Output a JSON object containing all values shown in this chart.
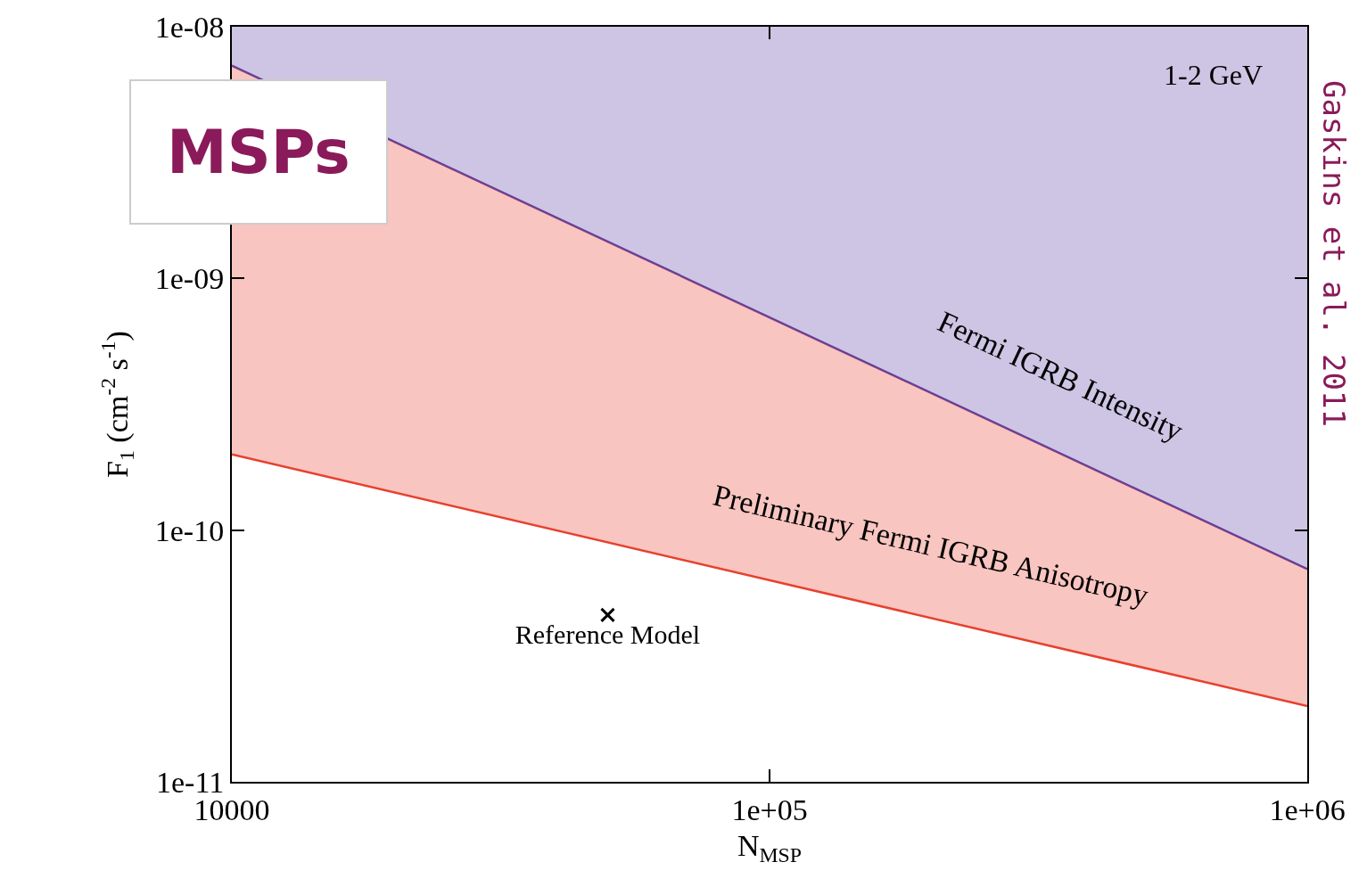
{
  "chart_data": {
    "type": "line",
    "title": "MSPs",
    "xlabel": "N$_{MSP}$",
    "ylabel": "F$_{1}$ (cm$^{-2}$ s$^{-1}$)",
    "log": "xy",
    "xlim": [
      10000,
      1000000
    ],
    "ylim": [
      1e-11,
      1e-08
    ],
    "xticks": [
      10000,
      {
        "value": 100000,
        "label": "1e+05"
      },
      {
        "value": 1000000,
        "label": "1e+06"
      }
    ],
    "yticks": [
      {
        "value": 1e-11,
        "label": "1e-11"
      },
      {
        "value": 1e-10,
        "label": "1e-10"
      },
      {
        "value": 1e-09,
        "label": "1e-09"
      },
      {
        "value": 1e-08,
        "label": "1e-08"
      }
    ],
    "legend": false,
    "series": [
      {
        "name": "Fermi IGRB Intensity",
        "color": "#5b3fa3",
        "x": [
          10000,
          1000000
        ],
        "values": [
          7e-09,
          7e-11
        ],
        "lower": [
          7e-09,
          7e-11
        ],
        "upper": [
          1e-08,
          1e-08
        ]
      },
      {
        "name": "Preliminary Fermi IGRB Anisotropy",
        "color": "#e8402e",
        "x": [
          10000,
          1000000
        ],
        "values": [
          2e-10,
          2e-11
        ],
        "lower": [
          2e-10,
          2e-11
        ],
        "upper": [
          7e-09,
          7e-11
        ]
      },
      {
        "name": "Reference Model",
        "type": "scatter",
        "marker": "cross",
        "color": "#000000",
        "x": [
          50000
        ],
        "values": [
          4.6e-11
        ]
      }
    ],
    "annotations": [
      "1-2 GeV",
      "Gaskins et al. 2011"
    ]
  }
}
